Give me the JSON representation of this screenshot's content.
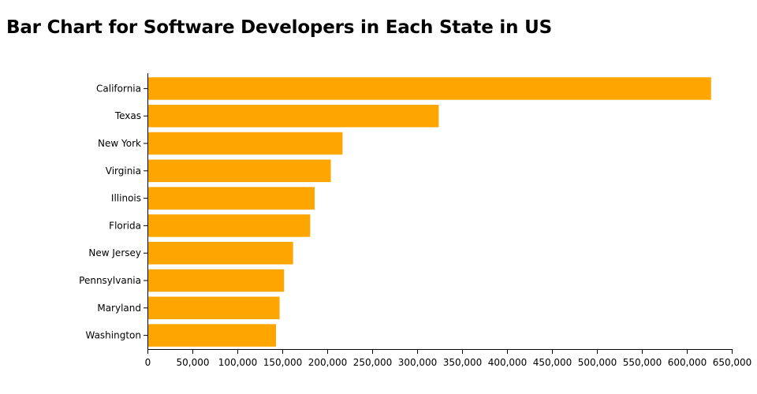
{
  "title": "Bar Chart for Software Developers in Each State in US",
  "colors": {
    "bar": "#ffa500",
    "axis": "#000000"
  },
  "chart_data": {
    "type": "bar",
    "orientation": "horizontal",
    "title": "Bar Chart for Software Developers in Each State in US",
    "categories": [
      "California",
      "Texas",
      "New York",
      "Virginia",
      "Illinois",
      "Florida",
      "New Jersey",
      "Pennsylvania",
      "Maryland",
      "Washington"
    ],
    "values": [
      627000,
      324000,
      217000,
      204000,
      186000,
      181000,
      162000,
      152000,
      147000,
      143000
    ],
    "xlim": [
      0,
      650000
    ],
    "x_ticks": [
      0,
      50000,
      100000,
      150000,
      200000,
      250000,
      300000,
      350000,
      400000,
      450000,
      500000,
      550000,
      600000,
      650000
    ],
    "x_tick_labels": [
      "0",
      "50,000",
      "100,000",
      "150,000",
      "200,000",
      "250,000",
      "300,000",
      "350,000",
      "400,000",
      "450,000",
      "500,000",
      "550,000",
      "600,000",
      "650,000"
    ],
    "xlabel": "",
    "ylabel": "",
    "grid": false,
    "legend": "none"
  }
}
